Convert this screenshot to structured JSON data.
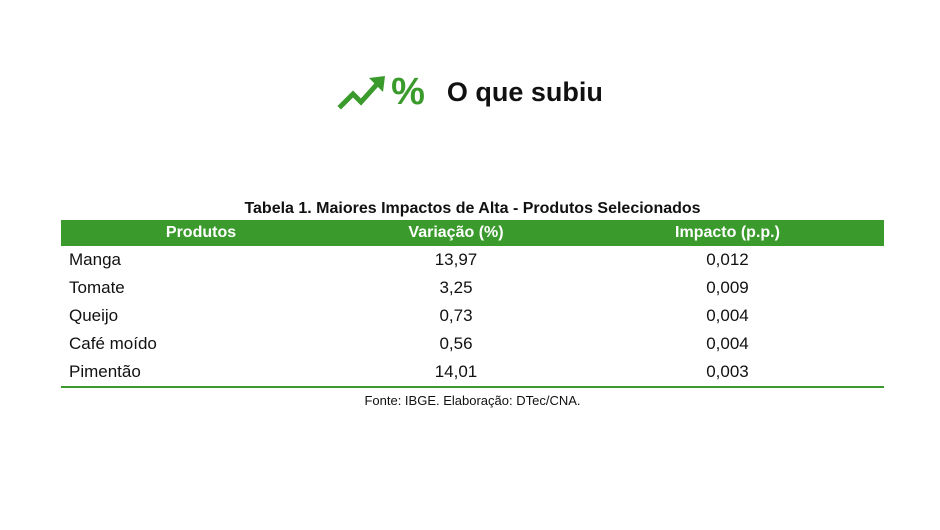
{
  "header": {
    "icon": "trending-up-arrow-icon",
    "percent_symbol": "%",
    "title": "O que subiu",
    "accent_color": "#3a9a2c"
  },
  "table": {
    "caption": "Tabela 1. Maiores Impactos de Alta - Produtos Selecionados",
    "header_color": "#3a9a2c",
    "columns": [
      "Produtos",
      "Variação (%)",
      "Impacto (p.p.)"
    ],
    "rows": [
      [
        "Manga",
        "13,97",
        "0,012"
      ],
      [
        "Tomate",
        "3,25",
        "0,009"
      ],
      [
        "Queijo",
        "0,73",
        "0,004"
      ],
      [
        "Café moído",
        "0,56",
        "0,004"
      ],
      [
        "Pimentão",
        "14,01",
        "0,003"
      ]
    ],
    "source": "Fonte: IBGE. Elaboração: DTec/CNA."
  }
}
